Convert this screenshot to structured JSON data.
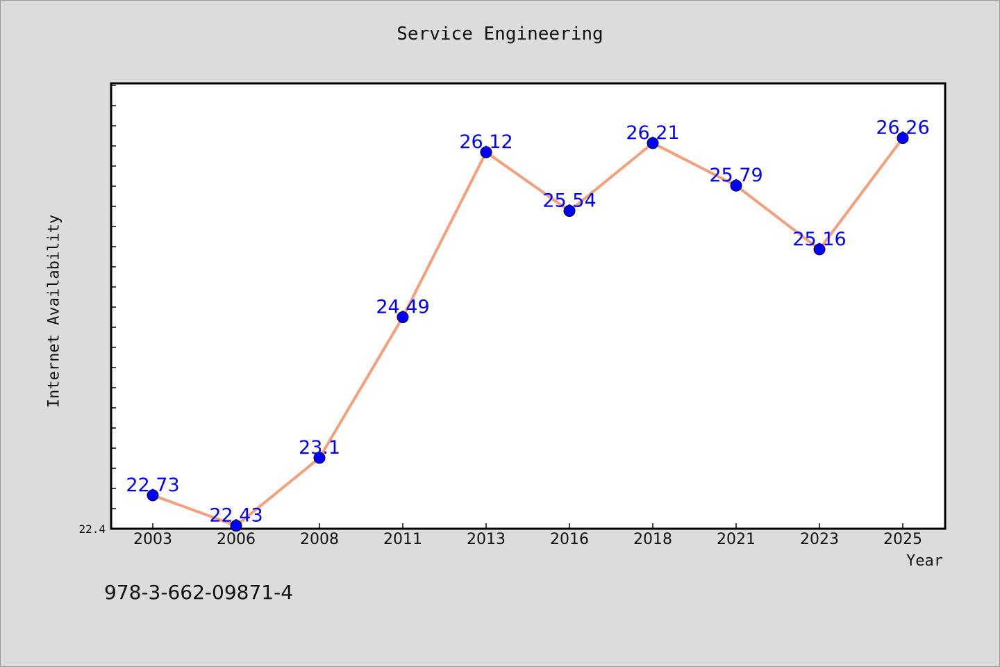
{
  "chart_data": {
    "type": "line",
    "title": "Service Engineering",
    "xlabel": "Year",
    "ylabel": "Internet Availability",
    "x": [
      "2003",
      "2006",
      "2008",
      "2011",
      "2013",
      "2016",
      "2018",
      "2021",
      "2023",
      "2025"
    ],
    "series": [
      {
        "values": [
          22.73,
          22.43,
          23.1,
          24.49,
          26.12,
          25.54,
          26.21,
          25.79,
          25.16,
          26.26
        ],
        "labels": [
          "22.73",
          "22.43",
          "23.1",
          "24.49",
          "26.12",
          "25.54",
          "26.21",
          "25.79",
          "25.16",
          "26.26"
        ],
        "line_color": "#f4a07c",
        "marker_color": "#0000ff"
      }
    ],
    "ylim": [
      22.4,
      26.8
    ],
    "y_min_label": "22.4",
    "grid": false,
    "legend": "none"
  },
  "footer": {
    "isbn": "978-3-662-09871-4"
  },
  "colors": {
    "background": "#dcdcdc",
    "plot_background": "#ffffff",
    "data_label": "#0000ff"
  }
}
